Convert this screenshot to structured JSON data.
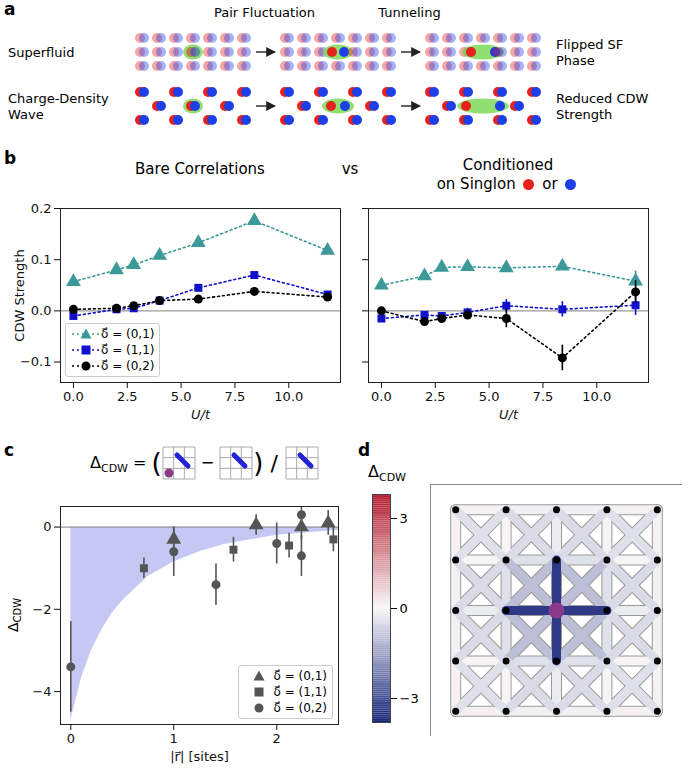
{
  "panel_letters": [
    "a",
    "b",
    "c",
    "d"
  ],
  "panel_a": {
    "column_heads": [
      "Pair Fluctuation",
      "Tunneling"
    ],
    "rows": [
      {
        "start": "Superfluid",
        "end": "Flipped SF Phase"
      },
      {
        "start": "Charge-Density Wave",
        "end": "Reduced CDW Strength"
      }
    ]
  },
  "between_titles": "vs",
  "chart_data": [
    {
      "type": "line",
      "title": "Bare Correlations",
      "xlabel": "U/t",
      "ylabel": "CDW Strength",
      "x": [
        0,
        2,
        2.8,
        4,
        5.8,
        8.4,
        11.8
      ],
      "series": [
        {
          "name": "δ⃗ = (0,1)",
          "color": "#3d9999",
          "marker": "triangle",
          "line_style": "dotted",
          "values": [
            0.057,
            0.08,
            0.09,
            0.108,
            0.133,
            0.176,
            0.118
          ]
        },
        {
          "name": "δ⃗ = (1,1)",
          "color": "#1111cc",
          "marker": "square",
          "line_style": "dotted",
          "values": [
            -0.01,
            0.003,
            0.005,
            0.02,
            0.045,
            0.07,
            0.032
          ]
        },
        {
          "name": "δ⃗ = (0,2)",
          "color": "#000000",
          "marker": "circle",
          "line_style": "dotted",
          "values": [
            0.003,
            0.005,
            0.01,
            0.02,
            0.023,
            0.038,
            0.027
          ]
        }
      ],
      "xlim": [
        -0.6,
        12.4
      ],
      "xticks": [
        {
          "value": 0,
          "label": "0.0"
        },
        {
          "value": 2.5,
          "label": "2.5"
        },
        {
          "value": 5,
          "label": "5.0"
        },
        {
          "value": 7.5,
          "label": "7.5"
        },
        {
          "value": 10,
          "label": "10.0"
        }
      ],
      "ylim": [
        -0.14,
        0.2
      ],
      "yticks": [
        {
          "value": -0.1,
          "label": "−0.1"
        },
        {
          "value": 0,
          "label": "0.0"
        },
        {
          "value": 0.1,
          "label": "0.1"
        },
        {
          "value": 0.2,
          "label": "0.2"
        }
      ],
      "legend": "lower left"
    },
    {
      "type": "line",
      "title": [
        "Conditioned",
        "on Singlon",
        "or"
      ],
      "title_marker_colors": [
        "#e8211d",
        "#1d3fe8"
      ],
      "xlabel": "U/t",
      "x": [
        0,
        2,
        2.8,
        4,
        5.8,
        8.4,
        11.8
      ],
      "series": [
        {
          "name": "δ⃗ = (0,1)",
          "color": "#3d9999",
          "marker": "triangle",
          "line_style": "dotted",
          "values": [
            0.05,
            0.068,
            0.085,
            0.086,
            0.084,
            0.087,
            0.058
          ],
          "errors": [
            0.004,
            0.004,
            0.005,
            0.005,
            0.008,
            0.008,
            0.02
          ]
        },
        {
          "name": "δ⃗ = (1,1)",
          "color": "#1111cc",
          "marker": "square",
          "line_style": "dotted",
          "values": [
            -0.015,
            -0.008,
            -0.01,
            -0.003,
            0.01,
            0.003,
            0.011
          ],
          "errors": [
            0.005,
            0.005,
            0.006,
            0.008,
            0.012,
            0.015,
            0.02
          ]
        },
        {
          "name": "δ⃗ = (0,2)",
          "color": "#000000",
          "marker": "circle",
          "line_style": "dotted",
          "values": [
            0.0,
            -0.021,
            -0.015,
            -0.008,
            -0.015,
            -0.092,
            0.037
          ],
          "errors": [
            0.004,
            0.005,
            0.005,
            0.008,
            0.018,
            0.025,
            0.022
          ]
        }
      ],
      "xlim": [
        -0.6,
        12.4
      ],
      "xticks": [
        {
          "value": 0,
          "label": "0.0"
        },
        {
          "value": 2.5,
          "label": "2.5"
        },
        {
          "value": 5,
          "label": "5.0"
        },
        {
          "value": 7.5,
          "label": "7.5"
        },
        {
          "value": 10,
          "label": "10.0"
        }
      ],
      "ylim": [
        -0.14,
        0.2
      ],
      "yticks": [
        {
          "value": -0.1,
          "label": "−0.1"
        },
        {
          "value": 0,
          "label": "0.0"
        },
        {
          "value": 0.1,
          "label": "0.1"
        },
        {
          "value": 0.2,
          "label": "0.2"
        }
      ],
      "tick_labels": "x"
    },
    {
      "type": "scatter",
      "equation": {
        "lhs": [
          "Δ",
          "CDW"
        ],
        "parts": [
          "=",
          "(",
          "−",
          ")",
          "/"
        ]
      },
      "xlabel": "|r⃗| [sites]",
      "ylabel": [
        "Δ",
        "CDW"
      ],
      "series": [
        {
          "name": "δ⃗ = (0,1)",
          "color": "#555555",
          "marker": "triangle",
          "x": [
            1.0,
            1.8,
            2.24,
            2.5
          ],
          "values": [
            -0.3,
            0.05,
            0.0,
            0.1
          ],
          "errors": [
            0.3,
            0.25,
            0.3,
            0.3
          ]
        },
        {
          "name": "δ⃗ = (1,1)",
          "color": "#555555",
          "marker": "square",
          "x": [
            0.71,
            1.58,
            2.12,
            2.55
          ],
          "values": [
            -1.0,
            -0.55,
            -0.45,
            -0.3
          ],
          "errors": [
            0.25,
            0.3,
            0.3,
            0.3
          ]
        },
        {
          "name": "δ⃗ = (0,2)",
          "color": "#555555",
          "marker": "circle",
          "x": [
            0,
            1.0,
            1.41,
            2.0,
            2.24,
            2.24
          ],
          "values": [
            -3.4,
            -0.6,
            -1.4,
            -0.4,
            -0.7,
            0.3
          ],
          "errors": [
            1.1,
            0.6,
            0.5,
            0.5,
            0.5,
            0.4
          ]
        }
      ],
      "shade": {
        "color": "#c5c8f2",
        "x": [
          0,
          0.1,
          0.2,
          0.3,
          0.4,
          0.5,
          0.75,
          1.0,
          1.25,
          1.5,
          2.0,
          2.6
        ],
        "y": [
          -4.7,
          -3.7,
          -3.0,
          -2.5,
          -2.1,
          -1.8,
          -1.2,
          -0.85,
          -0.6,
          -0.42,
          -0.2,
          -0.08
        ]
      },
      "xlim": [
        -0.1,
        2.6
      ],
      "xticks": [
        0,
        1,
        2
      ],
      "ylim": [
        -4.8,
        0.5
      ],
      "yticks": [
        {
          "value": -4,
          "label": "−4"
        },
        {
          "value": -2,
          "label": "−2"
        },
        0
      ],
      "legend": "lower right"
    },
    {
      "type": "lattice",
      "colorbar": {
        "label": [
          "Δ",
          "CDW"
        ],
        "lim": [
          -3.8,
          3.8
        ],
        "ticks": [
          {
            "value": -3,
            "label": "−3"
          },
          0,
          3
        ],
        "colors": [
          "#16237a",
          "#f7f7f7",
          "#b2182b"
        ]
      },
      "singlon": [
        2,
        2
      ],
      "singlon_color": "#8b3a8b",
      "bonds": [
        [
          0,
          0,
          1,
          0,
          0.1
        ],
        [
          1,
          0,
          2,
          0,
          -0.1
        ],
        [
          2,
          0,
          3,
          0,
          -0.1
        ],
        [
          3,
          0,
          4,
          0,
          0.1
        ],
        [
          0,
          1,
          1,
          1,
          0.05
        ],
        [
          1,
          1,
          2,
          1,
          -0.4
        ],
        [
          2,
          1,
          3,
          1,
          -0.4
        ],
        [
          3,
          1,
          4,
          1,
          0.05
        ],
        [
          0,
          2,
          1,
          2,
          -0.2
        ],
        [
          1,
          2,
          2,
          2,
          -0.3
        ],
        [
          2,
          2,
          3,
          2,
          -0.3
        ],
        [
          3,
          2,
          4,
          2,
          -0.2
        ],
        [
          0,
          3,
          1,
          3,
          0.05
        ],
        [
          1,
          3,
          2,
          3,
          -0.4
        ],
        [
          2,
          3,
          3,
          3,
          -0.4
        ],
        [
          3,
          3,
          4,
          3,
          0.05
        ],
        [
          0,
          4,
          1,
          4,
          0.1
        ],
        [
          1,
          4,
          2,
          4,
          -0.1
        ],
        [
          2,
          4,
          3,
          4,
          -0.1
        ],
        [
          3,
          4,
          4,
          4,
          0.1
        ],
        [
          0,
          0,
          0,
          1,
          0.1
        ],
        [
          0,
          1,
          0,
          2,
          -0.1
        ],
        [
          0,
          2,
          0,
          3,
          -0.1
        ],
        [
          0,
          3,
          0,
          4,
          0.1
        ],
        [
          1,
          0,
          1,
          1,
          0.05
        ],
        [
          1,
          1,
          1,
          2,
          -0.4
        ],
        [
          1,
          2,
          1,
          3,
          -0.4
        ],
        [
          1,
          3,
          1,
          4,
          0.05
        ],
        [
          2,
          0,
          2,
          1,
          -0.2
        ],
        [
          2,
          1,
          2,
          2,
          -0.3
        ],
        [
          2,
          2,
          2,
          3,
          -0.3
        ],
        [
          2,
          3,
          2,
          4,
          -0.2
        ],
        [
          3,
          0,
          3,
          1,
          0.05
        ],
        [
          3,
          1,
          3,
          2,
          -0.4
        ],
        [
          3,
          2,
          3,
          3,
          -0.4
        ],
        [
          3,
          3,
          3,
          4,
          0.05
        ],
        [
          4,
          0,
          4,
          1,
          0.1
        ],
        [
          4,
          1,
          4,
          2,
          -0.1
        ],
        [
          4,
          2,
          4,
          3,
          -0.1
        ],
        [
          4,
          3,
          4,
          4,
          0.1
        ],
        [
          0,
          0,
          1,
          1,
          -0.4
        ],
        [
          1,
          0,
          0,
          1,
          -0.4
        ],
        [
          1,
          0,
          2,
          1,
          -0.5
        ],
        [
          2,
          0,
          1,
          1,
          -0.5
        ],
        [
          2,
          0,
          3,
          1,
          -0.5
        ],
        [
          3,
          0,
          2,
          1,
          -0.5
        ],
        [
          3,
          0,
          4,
          1,
          -0.4
        ],
        [
          4,
          0,
          3,
          1,
          -0.4
        ],
        [
          0,
          1,
          1,
          2,
          -0.5
        ],
        [
          1,
          1,
          0,
          2,
          -0.5
        ],
        [
          1,
          1,
          2,
          2,
          -1.0
        ],
        [
          2,
          1,
          1,
          2,
          -1.0
        ],
        [
          2,
          1,
          3,
          2,
          -1.0
        ],
        [
          3,
          1,
          2,
          2,
          -1.0
        ],
        [
          3,
          1,
          4,
          2,
          -0.5
        ],
        [
          4,
          1,
          3,
          2,
          -0.5
        ],
        [
          0,
          2,
          1,
          3,
          -0.5
        ],
        [
          1,
          2,
          0,
          3,
          -0.5
        ],
        [
          1,
          2,
          2,
          3,
          -1.0
        ],
        [
          2,
          2,
          1,
          3,
          -1.0
        ],
        [
          2,
          2,
          3,
          3,
          -1.0
        ],
        [
          3,
          2,
          2,
          3,
          -1.0
        ],
        [
          3,
          2,
          4,
          3,
          -0.5
        ],
        [
          4,
          2,
          3,
          3,
          -0.5
        ],
        [
          0,
          3,
          1,
          4,
          -0.4
        ],
        [
          1,
          3,
          0,
          4,
          -0.4
        ],
        [
          1,
          3,
          2,
          4,
          -0.5
        ],
        [
          2,
          3,
          1,
          4,
          -0.5
        ],
        [
          2,
          3,
          3,
          4,
          -0.5
        ],
        [
          3,
          3,
          2,
          4,
          -0.5
        ],
        [
          3,
          3,
          4,
          4,
          -0.4
        ],
        [
          4,
          3,
          3,
          4,
          -0.4
        ],
        [
          1,
          2,
          3,
          2,
          -3.4
        ],
        [
          2,
          1,
          2,
          3,
          -3.4
        ]
      ]
    }
  ]
}
